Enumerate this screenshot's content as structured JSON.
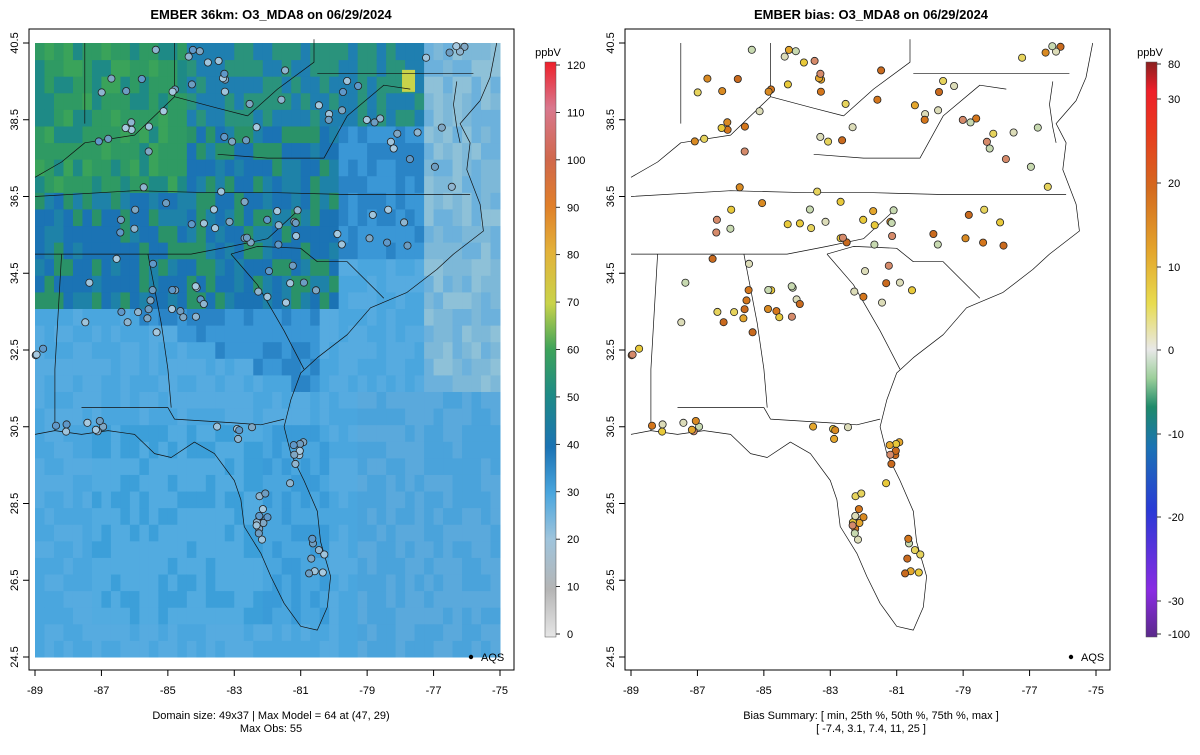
{
  "left_panel": {
    "title": "EMBER 36km: O3_MDA8 on 06/29/2024",
    "colorbar_unit": "ppbV",
    "colorbar_ticks": [
      "0",
      "10",
      "20",
      "30",
      "40",
      "50",
      "60",
      "70",
      "80",
      "90",
      "100",
      "110",
      "120"
    ],
    "footer_line1": "Domain size: 49x37 | Max Model = 64 at (47, 29)",
    "footer_line2": "Max Obs: 55",
    "legend_label": "AQS"
  },
  "right_panel": {
    "title": "EMBER bias: O3_MDA8 on 06/29/2024",
    "colorbar_unit": "ppbV",
    "colorbar_ticks": [
      "-100",
      "-30",
      "-20",
      "-10",
      "0",
      "10",
      "20",
      "30",
      "80"
    ],
    "footer_line1": "Bias Summary: [ min, 25th %, 50th %, 75th %, max ]",
    "footer_line2": "[ -7.4,   3.1,   7.4,   11,   25 ]",
    "legend_label": "AQS"
  },
  "axes": {
    "x_ticks": [
      "-89",
      "-87",
      "-85",
      "-83",
      "-81",
      "-79",
      "-77",
      "-75"
    ],
    "y_ticks": [
      "24.5",
      "26.5",
      "28.5",
      "30.5",
      "32.5",
      "34.5",
      "36.5",
      "38.5",
      "40.5"
    ]
  },
  "colors": {
    "ocean_blue": "#4aa6de",
    "model_deep": "#1b73b4",
    "model_green": "#3c9a5c",
    "obs_low": "#9fc4dc",
    "bias_warm": "#e4a62c"
  }
}
